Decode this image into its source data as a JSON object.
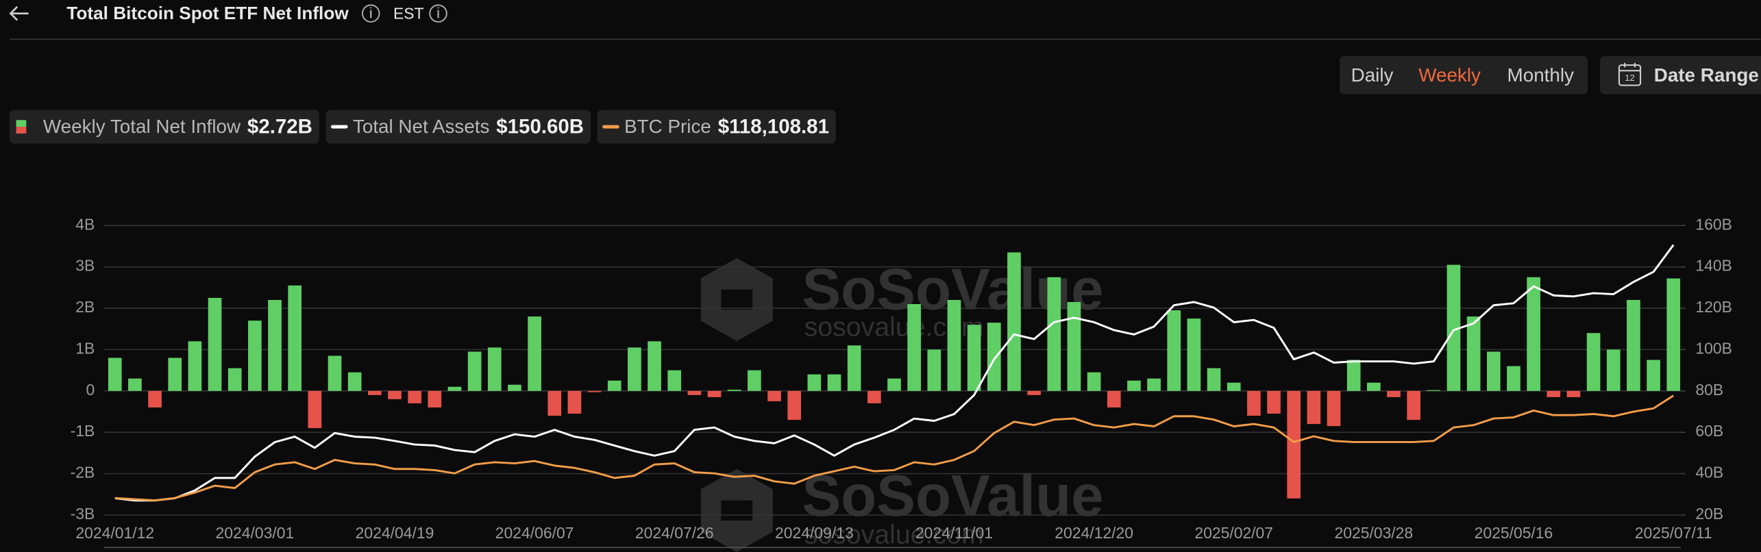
{
  "chart_data": {
    "type": "bar",
    "title": "Total Bitcoin Spot ETF Net Inflow",
    "timezone": "EST",
    "periods": [
      "Daily",
      "Weekly",
      "Monthly"
    ],
    "active_period": 1,
    "date_range_label": "Date Range",
    "calendar_icon_label": "12",
    "watermark": [
      "SoSoValue",
      "sosovalue.com"
    ],
    "categories": [
      "2024/01/12",
      null,
      null,
      null,
      null,
      null,
      null,
      "2024/03/01",
      null,
      null,
      null,
      null,
      null,
      null,
      "2024/04/19",
      null,
      null,
      null,
      null,
      null,
      null,
      "2024/06/07",
      null,
      null,
      null,
      null,
      null,
      null,
      "2024/07/26",
      null,
      null,
      null,
      null,
      null,
      null,
      "2024/09/13",
      null,
      null,
      null,
      null,
      null,
      null,
      "2024/11/01",
      null,
      null,
      null,
      null,
      null,
      null,
      "2024/12/20",
      null,
      null,
      null,
      null,
      null,
      null,
      "2025/02/07",
      null,
      null,
      null,
      null,
      null,
      null,
      "2025/03/28",
      null,
      null,
      null,
      null,
      null,
      null,
      "2025/05/16",
      null,
      null,
      null,
      null,
      null,
      null,
      null,
      "2025/07/11"
    ],
    "series": [
      {
        "name": "Weekly Total Net Inflow",
        "legend_value": "$2.72B",
        "kind": "bar",
        "color": "#5fcf65",
        "negative_color": "#e5534b",
        "values": [
          0.8,
          0.3,
          -0.4,
          0.8,
          1.2,
          2.25,
          0.55,
          1.7,
          2.2,
          2.55,
          -0.9,
          0.85,
          0.45,
          -0.1,
          -0.2,
          -0.3,
          -0.4,
          0.1,
          0.95,
          1.05,
          0.15,
          1.8,
          -0.6,
          -0.55,
          -0.03,
          0.25,
          1.05,
          1.2,
          0.5,
          -0.1,
          -0.15,
          0.03,
          0.5,
          -0.25,
          -0.7,
          0.4,
          0.4,
          1.1,
          -0.3,
          0.3,
          2.1,
          1.0,
          2.2,
          1.6,
          1.65,
          3.35,
          -0.1,
          2.75,
          2.15,
          0.45,
          -0.4,
          0.25,
          0.3,
          1.95,
          1.75,
          0.55,
          0.2,
          -0.6,
          -0.55,
          -2.6,
          -0.8,
          -0.85,
          0.75,
          0.2,
          -0.15,
          -0.7,
          0.02,
          3.05,
          1.8,
          0.95,
          0.6,
          2.75,
          -0.15,
          -0.15,
          1.4,
          1.0,
          2.2,
          0.75,
          2.72
        ]
      },
      {
        "name": "Total Net Assets",
        "legend_value": "$150.60B",
        "kind": "line",
        "axis": "y2",
        "color": "#ffffff",
        "values": [
          28.1,
          27,
          27,
          28.1,
          31.9,
          37.9,
          37.9,
          48.2,
          55.2,
          57.9,
          52.5,
          59.6,
          57.9,
          57.4,
          55.8,
          54.1,
          53.6,
          51.4,
          50.4,
          55.8,
          59,
          57.9,
          61.2,
          57.9,
          56.3,
          53.6,
          50.9,
          48.7,
          50.9,
          61.2,
          62.3,
          57.9,
          55.8,
          54.7,
          58.5,
          54.1,
          48.7,
          54.1,
          57.4,
          61.2,
          66.6,
          65.5,
          68.8,
          78,
          95.3,
          107.3,
          105.1,
          113.2,
          115.4,
          113.2,
          109.4,
          107.3,
          111.1,
          121.4,
          123,
          120.3,
          113.2,
          114.3,
          110.5,
          95.3,
          98.6,
          93.7,
          94.3,
          94.3,
          94.3,
          93.2,
          94.3,
          109.4,
          112.7,
          121.4,
          122.4,
          130.6,
          126.2,
          125.7,
          127.3,
          126.8,
          132.7,
          137.6,
          150.6
        ]
      },
      {
        "name": "BTC Price",
        "legend_value": "$118,108.81",
        "kind": "line",
        "axis": "y3",
        "color": "#f29d49",
        "values": [
          45900,
          45100,
          44300,
          45900,
          49800,
          54600,
          53000,
          64100,
          69600,
          71200,
          66400,
          72800,
          70400,
          69600,
          66400,
          66400,
          65600,
          63300,
          69600,
          71200,
          70400,
          72000,
          68800,
          67200,
          64100,
          60100,
          61700,
          69600,
          70400,
          64100,
          63300,
          60900,
          61700,
          57700,
          56100,
          61700,
          64800,
          68000,
          64800,
          65600,
          71200,
          69600,
          72800,
          79100,
          91700,
          99700,
          97300,
          101200,
          102000,
          97300,
          95700,
          98100,
          96500,
          103600,
          103600,
          101200,
          96500,
          98100,
          95700,
          85400,
          89400,
          86200,
          85400,
          85400,
          85400,
          85400,
          86200,
          95700,
          97300,
          102000,
          102800,
          107600,
          104400,
          104400,
          105200,
          103600,
          106800,
          109100,
          118108.81
        ]
      }
    ],
    "ylim": [
      -3,
      4
    ],
    "yticks": [
      {
        "value": 4,
        "label": "4B"
      },
      {
        "value": 3,
        "label": "3B"
      },
      {
        "value": 2,
        "label": "2B"
      },
      {
        "value": 1,
        "label": "1B"
      },
      0,
      {
        "value": -1,
        "label": "-1B"
      },
      {
        "value": -2,
        "label": "-2B"
      },
      {
        "value": -3,
        "label": "-3B"
      }
    ],
    "y2lim": [
      20,
      160
    ],
    "y2ticks": [
      {
        "value": 160,
        "label": "160B"
      },
      {
        "value": 140,
        "label": "140B"
      },
      {
        "value": 120,
        "label": "120B"
      },
      {
        "value": 100,
        "label": "100B"
      },
      {
        "value": 80,
        "label": "80B"
      },
      {
        "value": 60,
        "label": "60B"
      },
      {
        "value": 40,
        "label": "40B"
      },
      {
        "value": 20,
        "label": "20B"
      }
    ],
    "y3lim": [
      34000,
      238000
    ],
    "grid": true
  }
}
